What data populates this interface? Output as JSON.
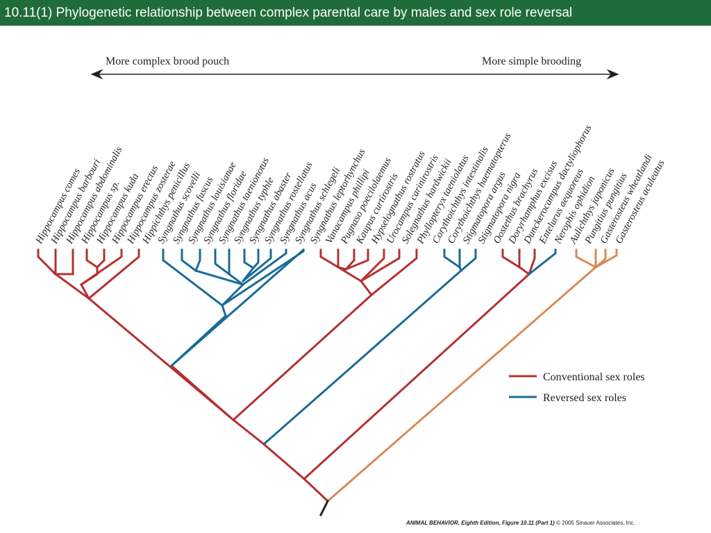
{
  "title": "10.11(1)  Phylogenetic relationship between complex parental care by males and sex role reversal",
  "axis": {
    "left_label": "More complex brood pouch",
    "right_label": "More simple brooding"
  },
  "colors": {
    "conventional": "#b53030",
    "reversed": "#1a6b96",
    "outgroup": "#d88a56",
    "root": "#222222"
  },
  "legend": [
    {
      "label": "Conventional sex roles",
      "color": "#b53030"
    },
    {
      "label": "Reversed sex roles",
      "color": "#1a6b96"
    }
  ],
  "taxa": [
    {
      "name": "Hippocampus comes",
      "role": "conventional"
    },
    {
      "name": "Hippocampus barbouri",
      "role": "conventional"
    },
    {
      "name": "Hippocampus abdominalis",
      "role": "conventional"
    },
    {
      "name": "Hippocampus sp.",
      "role": "conventional"
    },
    {
      "name": "Hippocampus kuda",
      "role": "conventional"
    },
    {
      "name": "Hippocampus erectus",
      "role": "conventional"
    },
    {
      "name": "Hippocampus zosterae",
      "role": "conventional"
    },
    {
      "name": "Hippichthys penicillus",
      "role": "reversed"
    },
    {
      "name": "Syngnathus scovelli",
      "role": "reversed"
    },
    {
      "name": "Syngnathus fuscus",
      "role": "reversed"
    },
    {
      "name": "Syngnathus louisianae",
      "role": "reversed"
    },
    {
      "name": "Syngnathus floridae",
      "role": "reversed"
    },
    {
      "name": "Syngnathus taenionotus",
      "role": "reversed"
    },
    {
      "name": "Syngnathus typhle",
      "role": "reversed"
    },
    {
      "name": "Syngnathus abaster",
      "role": "reversed"
    },
    {
      "name": "Syngnathus rostellatus",
      "role": "reversed"
    },
    {
      "name": "Syngnathus acus",
      "role": "reversed"
    },
    {
      "name": "Syngnathus schlegeli",
      "role": "reversed"
    },
    {
      "name": "Syngnathus leptorhynchus",
      "role": "conventional"
    },
    {
      "name": "Vanacampus phillipi",
      "role": "conventional"
    },
    {
      "name": "Pugnaso poecilolaemus",
      "role": "conventional"
    },
    {
      "name": "Kaupus curtirostris",
      "role": "conventional"
    },
    {
      "name": "Hypselognathus rostratus",
      "role": "conventional"
    },
    {
      "name": "Urocampus carinirostris",
      "role": "conventional"
    },
    {
      "name": "Solegnathus hardwickii",
      "role": "conventional"
    },
    {
      "name": "Phyllopteryx taeniolatus",
      "role": "conventional"
    },
    {
      "name": "Corythoichthys intestinalis",
      "role": "reversed"
    },
    {
      "name": "Corythoichthys haematopterus",
      "role": "reversed"
    },
    {
      "name": "Stigmatopora argus",
      "role": "reversed"
    },
    {
      "name": "Stigmatopora nigra",
      "role": "conventional"
    },
    {
      "name": "Oostethus brachyrus",
      "role": "conventional"
    },
    {
      "name": "Doryrhamphus excisus",
      "role": "conventional"
    },
    {
      "name": "Dunckerocampus dactyliophorus",
      "role": "reversed"
    },
    {
      "name": "Entelurus aequoreus",
      "role": "reversed"
    },
    {
      "name": "Nerophis ophidion",
      "role": "outgroup"
    },
    {
      "name": "Aulichthys japonicus",
      "role": "outgroup"
    },
    {
      "name": "Pungitius pungitius",
      "role": "outgroup"
    },
    {
      "name": "Gasterosteus wheatlandi",
      "role": "outgroup"
    },
    {
      "name": "Gasterosteus aculeatus",
      "role": "outgroup"
    }
  ],
  "credit": {
    "book": "ANIMAL BEHAVIOR, Eighth Edition,",
    "figure": "Figure 10.11 (Part 1)",
    "copyright": "© 2005 Sinauer Associates, Inc."
  }
}
